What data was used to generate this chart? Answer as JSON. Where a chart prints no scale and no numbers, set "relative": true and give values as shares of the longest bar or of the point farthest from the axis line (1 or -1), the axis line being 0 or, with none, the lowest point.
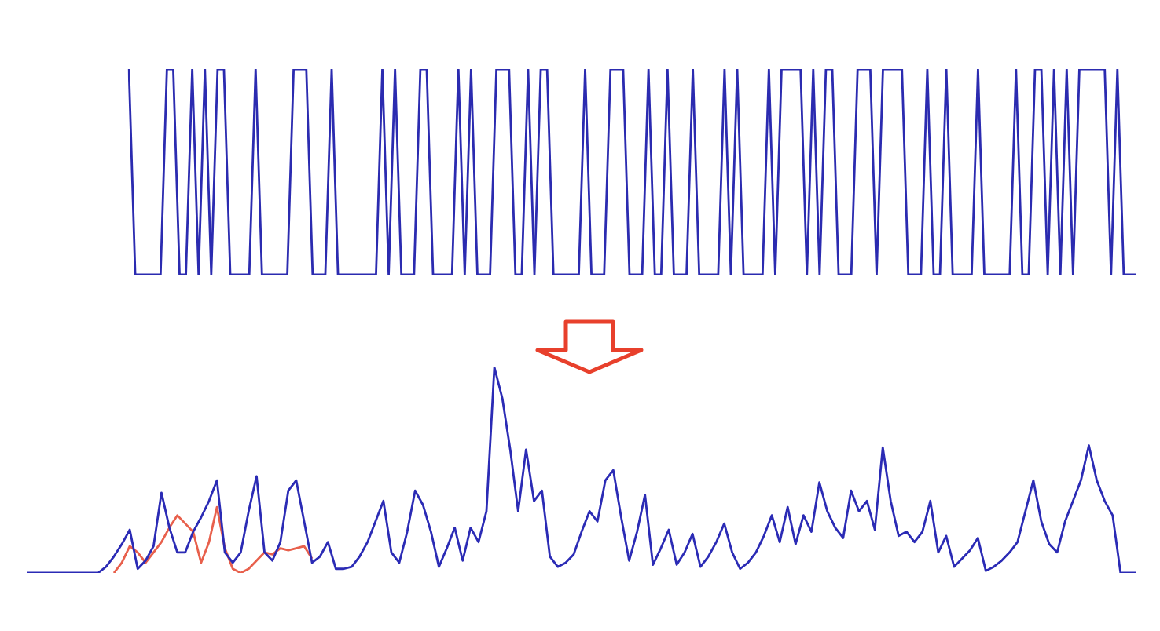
{
  "chart_data": [
    {
      "type": "line",
      "relative": true,
      "color": "#2b2bb0",
      "categories": [
        null,
        null,
        null,
        null,
        null,
        null,
        null,
        null,
        null,
        null,
        null,
        null,
        null,
        null,
        null,
        null,
        null,
        null,
        null,
        null,
        null,
        null,
        null,
        null,
        null,
        null,
        null,
        null,
        null,
        null,
        null,
        null,
        null,
        null,
        null,
        null,
        null,
        null,
        null,
        null,
        null,
        null,
        null,
        null,
        null,
        null,
        null,
        null,
        null,
        null,
        null,
        null,
        null,
        null,
        null,
        null,
        null,
        null,
        null,
        null,
        null,
        null,
        null,
        null,
        null,
        null,
        null,
        null,
        null,
        null,
        null,
        null,
        null,
        null,
        null,
        null,
        null,
        null,
        null,
        null,
        null,
        null,
        null,
        null,
        null,
        null,
        null,
        null,
        null,
        null,
        null,
        null,
        null,
        null,
        null,
        null,
        null,
        null,
        null,
        null,
        null,
        null,
        null,
        null,
        null,
        null,
        null,
        null,
        null,
        null,
        null,
        null,
        null,
        null,
        null,
        null,
        null,
        null,
        null,
        null,
        null,
        null,
        null,
        null,
        null,
        null,
        null,
        null,
        null,
        null,
        null,
        null,
        null,
        null,
        null,
        null,
        null,
        null,
        null,
        null,
        null,
        null,
        null,
        null,
        null,
        null,
        null,
        null,
        null,
        null,
        null,
        null,
        null,
        null,
        null,
        null,
        null,
        null,
        null,
        null
      ],
      "values": [
        1,
        0,
        0,
        0,
        0,
        0,
        1,
        1,
        0,
        0,
        1,
        0,
        1,
        0,
        1,
        1,
        0,
        0,
        0,
        0,
        1,
        0,
        0,
        0,
        0,
        0,
        1,
        1,
        1,
        0,
        0,
        0,
        1,
        0,
        0,
        0,
        0,
        0,
        0,
        0,
        1,
        0,
        1,
        0,
        0,
        0,
        1,
        1,
        0,
        0,
        0,
        0,
        1,
        0,
        1,
        0,
        0,
        0,
        1,
        1,
        1,
        0,
        0,
        1,
        0,
        1,
        1,
        0,
        0,
        0,
        0,
        0,
        1,
        0,
        0,
        0,
        1,
        1,
        1,
        0,
        0,
        0,
        1,
        0,
        0,
        1,
        0,
        0,
        0,
        1,
        0,
        0,
        0,
        0,
        1,
        0,
        1,
        0,
        0,
        0,
        0,
        1,
        0,
        1,
        1,
        1,
        1,
        0,
        1,
        0,
        1,
        1,
        0,
        0,
        0,
        1,
        1,
        1,
        0,
        1,
        1,
        1,
        1,
        0,
        0,
        0,
        1,
        0,
        0,
        1,
        0,
        0,
        0,
        0,
        1,
        0,
        0,
        0,
        0,
        0,
        1,
        0,
        0,
        1,
        1,
        0,
        1,
        0,
        1,
        0,
        1,
        1,
        1,
        1,
        1,
        0,
        1,
        0,
        0,
        0
      ]
    },
    {
      "type": "line",
      "relative": true,
      "categories": [
        null,
        null,
        null,
        null,
        null,
        null,
        null,
        null,
        null,
        null,
        null,
        null,
        null,
        null,
        null,
        null,
        null,
        null,
        null,
        null,
        null,
        null,
        null,
        null,
        null,
        null,
        null,
        null,
        null,
        null,
        null,
        null,
        null,
        null,
        null,
        null,
        null,
        null,
        null,
        null,
        null,
        null,
        null,
        null,
        null,
        null,
        null,
        null,
        null,
        null,
        null,
        null,
        null,
        null,
        null,
        null,
        null,
        null,
        null,
        null,
        null,
        null,
        null,
        null,
        null,
        null,
        null,
        null,
        null,
        null,
        null,
        null,
        null,
        null,
        null,
        null,
        null,
        null,
        null,
        null,
        null,
        null,
        null,
        null,
        null,
        null,
        null,
        null,
        null,
        null,
        null,
        null,
        null,
        null,
        null,
        null,
        null,
        null,
        null,
        null,
        null,
        null,
        null,
        null,
        null,
        null,
        null,
        null,
        null,
        null,
        null,
        null,
        null,
        null,
        null,
        null,
        null,
        null,
        null,
        null,
        null,
        null,
        null,
        null,
        null,
        null,
        null,
        null,
        null,
        null,
        null,
        null,
        null,
        null,
        null,
        null,
        null,
        null,
        null,
        null,
        null
      ],
      "series": [
        {
          "color": "#2b2bb5",
          "values": [
            0,
            0,
            0,
            0,
            0,
            0,
            0,
            0,
            0,
            0,
            0.03,
            0.08,
            0.14,
            0.21,
            0.02,
            0.06,
            0.13,
            0.39,
            0.22,
            0.1,
            0.1,
            0.2,
            0.27,
            0.35,
            0.45,
            0.1,
            0.05,
            0.1,
            0.3,
            0.47,
            0.1,
            0.06,
            0.15,
            0.4,
            0.45,
            0.25,
            0.05,
            0.08,
            0.15,
            0.02,
            0.02,
            0.03,
            0.08,
            0.15,
            0.25,
            0.35,
            0.1,
            0.05,
            0.2,
            0.4,
            0.33,
            0.2,
            0.03,
            0.12,
            0.22,
            0.06,
            0.22,
            0.15,
            0.3,
            1,
            0.85,
            0.6,
            0.3,
            0.6,
            0.35,
            0.4,
            0.08,
            0.03,
            0.05,
            0.09,
            0.2,
            0.3,
            0.25,
            0.45,
            0.5,
            0.27,
            0.06,
            0.2,
            0.38,
            0.04,
            0.12,
            0.21,
            0.04,
            0.1,
            0.19,
            0.03,
            0.08,
            0.15,
            0.24,
            0.1,
            0.02,
            0.05,
            0.1,
            0.18,
            0.28,
            0.15,
            0.32,
            0.14,
            0.28,
            0.2,
            0.44,
            0.3,
            0.22,
            0.17,
            0.4,
            0.3,
            0.35,
            0.21,
            0.61,
            0.35,
            0.18,
            0.2,
            0.15,
            0.2,
            0.35,
            0.1,
            0.18,
            0.03,
            0.07,
            0.11,
            0.17,
            0.01,
            0.03,
            0.06,
            0.1,
            0.15,
            0.3,
            0.45,
            0.25,
            0.14,
            0.1,
            0.25,
            0.35,
            0.45,
            0.62,
            0.45,
            0.35,
            0.28,
            0,
            0,
            0
          ]
        },
        {
          "color": "#e8604c",
          "values": [
            null,
            null,
            null,
            null,
            null,
            null,
            null,
            null,
            null,
            null,
            null,
            0,
            0.05,
            0.13,
            0.1,
            0.05,
            0.1,
            0.15,
            0.22,
            0.28,
            0.24,
            0.2,
            0.05,
            0.15,
            0.32,
            0.12,
            0.02,
            0,
            0.02,
            0.06,
            0.1,
            0.09,
            0.12,
            0.11,
            0.12,
            0.13,
            0.07,
            null,
            null,
            null,
            null,
            null,
            null,
            null,
            null,
            null,
            null,
            null,
            null,
            null,
            null,
            null,
            null,
            null,
            null,
            null,
            null,
            null,
            null,
            null,
            null,
            null,
            null,
            null,
            null,
            null,
            null,
            null,
            null,
            null,
            null,
            null,
            null,
            null,
            null,
            null,
            null,
            null,
            null,
            null,
            null,
            null,
            null,
            null,
            null,
            null,
            null,
            null,
            null,
            null,
            null,
            null,
            null,
            null,
            null,
            null,
            null,
            null,
            null,
            null,
            null,
            null,
            null,
            null,
            null,
            null,
            null,
            null,
            null,
            null,
            null,
            null,
            null,
            null,
            null,
            null,
            null,
            null,
            null,
            null,
            null,
            null,
            null,
            null,
            null,
            null,
            null,
            null,
            null,
            null,
            null,
            null,
            null,
            null,
            null,
            null,
            null,
            null,
            null,
            null,
            null
          ]
        }
      ]
    }
  ]
}
